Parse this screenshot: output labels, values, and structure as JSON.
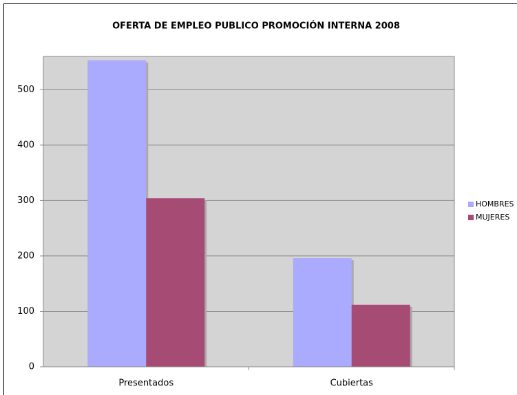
{
  "chart_data": {
    "type": "bar",
    "title": "OFERTA DE EMPLEO PUBLICO PROMOCIÓN INTERNA 2008",
    "categories": [
      "Presentados",
      "Cubiertas"
    ],
    "series": [
      {
        "name": "HOMBRES",
        "color": "#aaaaff",
        "values": [
          553,
          196
        ]
      },
      {
        "name": "MUJERES",
        "color": "#a64b73",
        "values": [
          304,
          112
        ]
      }
    ],
    "ylim": [
      0,
      560
    ],
    "yticks": [
      0,
      100,
      200,
      300,
      400,
      500
    ],
    "grid": true,
    "legend": "right"
  }
}
